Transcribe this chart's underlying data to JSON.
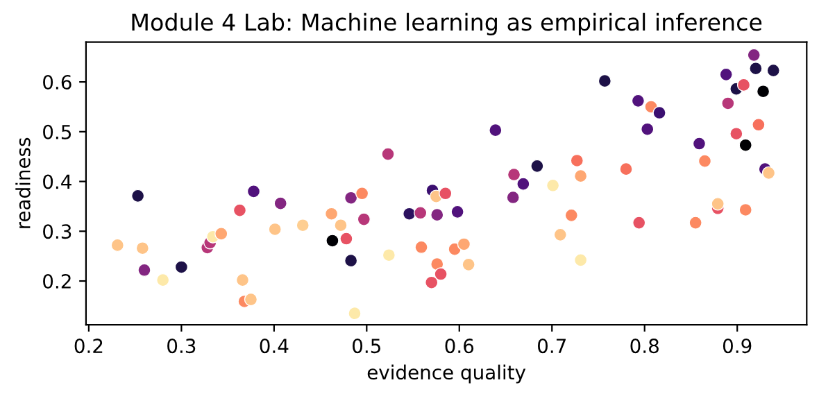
{
  "chart_data": {
    "type": "scatter",
    "title": "Module 4 Lab: Machine learning as empirical inference",
    "xlabel": "evidence quality",
    "ylabel": "readiness",
    "x": [
      0.231,
      0.253,
      0.258,
      0.26,
      0.28,
      0.3,
      0.328,
      0.331,
      0.334,
      0.343,
      0.363,
      0.366,
      0.368,
      0.375,
      0.378,
      0.401,
      0.407,
      0.431,
      0.462,
      0.463,
      0.472,
      0.478,
      0.483,
      0.483,
      0.487,
      0.495,
      0.497,
      0.523,
      0.524,
      0.546,
      0.559,
      0.558,
      0.57,
      0.571,
      0.575,
      0.576,
      0.576,
      0.58,
      0.585,
      0.598,
      0.595,
      0.605,
      0.61,
      0.639,
      0.659,
      0.658,
      0.669,
      0.684,
      0.701,
      0.709,
      0.721,
      0.727,
      0.731,
      0.731,
      0.757,
      0.78,
      0.793,
      0.794,
      0.807,
      0.803,
      0.816,
      0.855,
      0.859,
      0.865,
      0.879,
      0.879,
      0.888,
      0.89,
      0.899,
      0.899,
      0.907,
      0.909,
      0.909,
      0.918,
      0.92,
      0.923,
      0.928,
      0.93,
      0.934,
      0.939
    ],
    "series": [
      {
        "values": [
          0.272,
          0.371,
          0.266,
          0.222,
          0.202,
          0.228,
          0.267,
          0.277,
          0.289,
          0.295,
          0.342,
          0.202,
          0.159,
          0.163,
          0.38,
          0.304,
          0.356,
          0.312,
          0.335,
          0.281,
          0.312,
          0.285,
          0.367,
          0.241,
          0.135,
          0.376,
          0.324,
          0.455,
          0.252,
          0.335,
          0.268,
          0.337,
          0.197,
          0.382,
          0.37,
          0.333,
          0.234,
          0.214,
          0.376,
          0.339,
          0.264,
          0.274,
          0.233,
          0.503,
          0.414,
          0.368,
          0.395,
          0.431,
          0.392,
          0.293,
          0.332,
          0.442,
          0.411,
          0.242,
          0.602,
          0.425,
          0.562,
          0.317,
          0.55,
          0.505,
          0.538,
          0.317,
          0.476,
          0.441,
          0.346,
          0.355,
          0.615,
          0.557,
          0.496,
          0.586,
          0.594,
          0.473,
          0.343,
          0.654,
          0.627,
          0.514,
          0.581,
          0.425,
          0.417,
          0.623
        ],
        "colors": [
          "#fec488",
          "#1d1147",
          "#fec488",
          "#832681",
          "#fde9a9",
          "#1d1147",
          "#b73779",
          "#b73779",
          "#fde9a9",
          "#fea772",
          "#e75263",
          "#fec488",
          "#fc8961",
          "#fec488",
          "#51127c",
          "#fec488",
          "#832681",
          "#fece91",
          "#fea772",
          "#000004",
          "#fec488",
          "#e75263",
          "#832681",
          "#1d1147",
          "#fde9a9",
          "#fc8961",
          "#b73779",
          "#b73779",
          "#fde9a9",
          "#2c115f",
          "#fc8961",
          "#b73779",
          "#e75263",
          "#3b0f70",
          "#fec488",
          "#832681",
          "#fc8961",
          "#e75263",
          "#e75263",
          "#51127c",
          "#fc8961",
          "#fea772",
          "#fec488",
          "#51127c",
          "#b73779",
          "#832681",
          "#51127c",
          "#1d1147",
          "#fde9a9",
          "#fec488",
          "#fc8961",
          "#f7705c",
          "#fea772",
          "#fde9a9",
          "#1d1147",
          "#f7705c",
          "#51127c",
          "#e75263",
          "#fc8961",
          "#51127c",
          "#3b0f70",
          "#fc8961",
          "#51127c",
          "#fc8961",
          "#e75263",
          "#fec488",
          "#51127c",
          "#b73779",
          "#e75263",
          "#1d1147",
          "#e75263",
          "#000004",
          "#fc8961",
          "#832681",
          "#1d1147",
          "#f7705c",
          "#000004",
          "#51127c",
          "#fec488",
          "#1d1147"
        ]
      }
    ],
    "xlim": [
      0.197,
      0.975
    ],
    "ylim": [
      0.112,
      0.68
    ],
    "xticks": [
      0.2,
      0.3,
      0.4,
      0.5,
      0.6,
      0.7,
      0.8,
      0.9
    ],
    "yticks": [
      0.2,
      0.3,
      0.4,
      0.5,
      0.6
    ],
    "marker": "circle",
    "grid": false,
    "legend": false
  }
}
